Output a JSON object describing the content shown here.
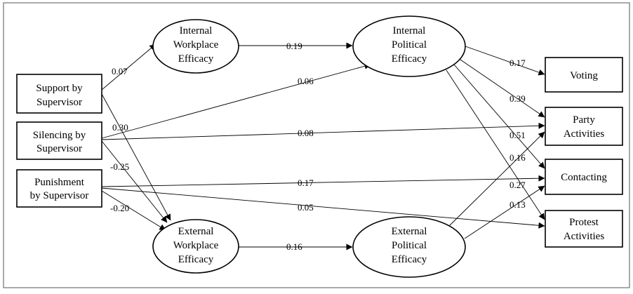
{
  "nodes": {
    "support": [
      "Support by",
      "Supervisor"
    ],
    "silencing": [
      "Silencing by",
      "Supervisor"
    ],
    "punishment": [
      "Punishment",
      "by Supervisor"
    ],
    "iwe": [
      "Internal",
      "Workplace",
      "Efficacy"
    ],
    "ewe": [
      "External",
      "Workplace",
      "Efficacy"
    ],
    "ipe": [
      "Internal",
      "Political",
      "Efficacy"
    ],
    "epe": [
      "External",
      "Political",
      "Efficacy"
    ],
    "voting": [
      "Voting"
    ],
    "party": [
      "Party",
      "Activities"
    ],
    "contacting": [
      "Contacting"
    ],
    "protest": [
      "Protest",
      "Activities"
    ]
  },
  "paths": [
    {
      "id": "support-iwe",
      "coef": "0.07"
    },
    {
      "id": "support-ewe",
      "coef": "0.30"
    },
    {
      "id": "silencing-ipe",
      "coef": "0.06"
    },
    {
      "id": "silencing-party",
      "coef": "0.08"
    },
    {
      "id": "silencing-ewe",
      "coef": "-0.25"
    },
    {
      "id": "punishment-ewe",
      "coef": "-0.20"
    },
    {
      "id": "punishment-contacting",
      "coef": "0.17"
    },
    {
      "id": "punishment-protest",
      "coef": "0.05"
    },
    {
      "id": "iwe-ipe",
      "coef": "0.19"
    },
    {
      "id": "ewe-epe",
      "coef": "0.16"
    },
    {
      "id": "ipe-voting",
      "coef": "0.17"
    },
    {
      "id": "ipe-party",
      "coef": "0.39"
    },
    {
      "id": "ipe-contacting",
      "coef": "0.51"
    },
    {
      "id": "ipe-protest",
      "coef": "0.27"
    },
    {
      "id": "epe-party",
      "coef": "0.16"
    },
    {
      "id": "epe-contacting",
      "coef": "0.13"
    }
  ]
}
